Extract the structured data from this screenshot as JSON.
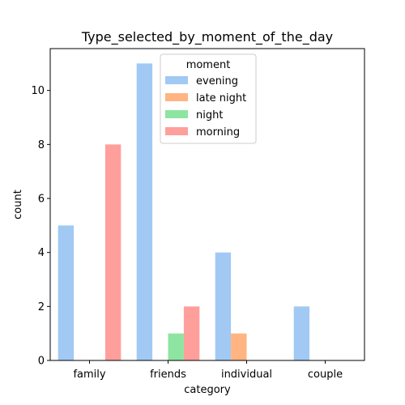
{
  "chart_data": {
    "type": "bar",
    "title": "Type_selected_by_moment_of_the_day",
    "xlabel": "category",
    "ylabel": "count",
    "categories": [
      "family",
      "friends",
      "individual",
      "couple"
    ],
    "ylim": [
      0,
      11.55
    ],
    "yticks": [
      0,
      2,
      4,
      6,
      8,
      10
    ],
    "grid": false,
    "legend": {
      "title": "moment",
      "placement": "top-center"
    },
    "series": [
      {
        "name": "evening",
        "color": "#a1c9f4",
        "values": [
          5,
          11,
          4,
          2
        ]
      },
      {
        "name": "late night",
        "color": "#ffb482",
        "values": [
          0,
          0,
          1,
          0
        ]
      },
      {
        "name": "night",
        "color": "#8de5a1",
        "values": [
          0,
          1,
          0,
          0
        ]
      },
      {
        "name": "morning",
        "color": "#ff9f9b",
        "values": [
          8,
          2,
          0,
          0
        ]
      }
    ]
  }
}
